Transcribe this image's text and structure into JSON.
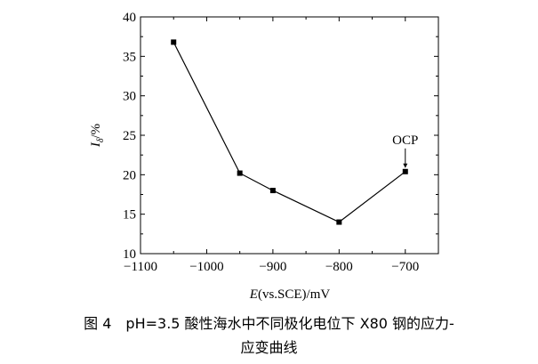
{
  "chart_data": {
    "type": "line",
    "title": "",
    "xlabel": "E(vs.SCE)/mV",
    "xlabel_italic": "E",
    "xlabel_rest": "(vs.SCE)/mV",
    "ylabel_main": "I",
    "ylabel_sub": "δ",
    "ylabel_rest": "/%",
    "xlim": [
      -1100,
      -650
    ],
    "ylim": [
      10,
      40
    ],
    "xticks": [
      -1100,
      -1000,
      -900,
      -800,
      -700
    ],
    "xtick_labels": [
      "−1100",
      "−1000",
      "−900",
      "−800",
      "−700"
    ],
    "yticks": [
      10,
      15,
      20,
      25,
      30,
      35,
      40
    ],
    "ytick_labels": [
      "10",
      "15",
      "20",
      "25",
      "30",
      "35",
      "40"
    ],
    "grid": false,
    "series": [
      {
        "name": "pH=3.5",
        "marker": "square",
        "x": [
          -1050,
          -950,
          -900,
          -800,
          -700
        ],
        "y": [
          36.8,
          20.2,
          18.0,
          14.0,
          20.4
        ]
      }
    ],
    "annotations": [
      {
        "text": "OCP",
        "x": -700,
        "y": 20.4
      }
    ]
  },
  "caption": {
    "line1": "图 4　pH=3.5 酸性海水中不同极化电位下 X80 钢的应力-",
    "line2": "应变曲线"
  }
}
